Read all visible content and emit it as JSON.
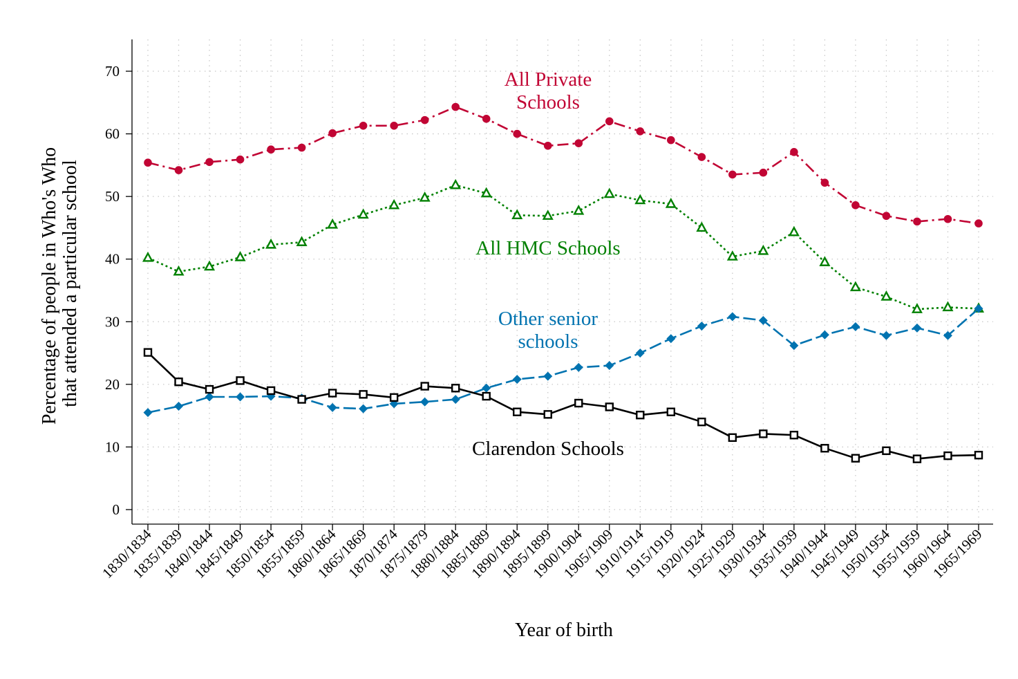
{
  "chart_data": {
    "type": "line",
    "title": "",
    "xlabel": "Year of birth",
    "ylabel_lines": [
      "Percentage of people in Who's Who",
      "that attended a particular school"
    ],
    "ylim": [
      0,
      75
    ],
    "yticks": [
      0,
      10,
      20,
      30,
      40,
      50,
      60,
      70
    ],
    "grid": true,
    "legend": "inline labels",
    "categories": [
      "1830/1834",
      "1835/1839",
      "1840/1844",
      "1845/1849",
      "1850/1854",
      "1855/1859",
      "1860/1864",
      "1865/1869",
      "1870/1874",
      "1875/1879",
      "1880/1884",
      "1885/1889",
      "1890/1894",
      "1895/1899",
      "1900/1904",
      "1905/1909",
      "1910/1914",
      "1915/1919",
      "1920/1924",
      "1925/1929",
      "1930/1934",
      "1935/1939",
      "1940/1944",
      "1945/1949",
      "1950/1954",
      "1955/1959",
      "1960/1964",
      "1965/1969"
    ],
    "series": [
      {
        "key": "private",
        "label_lines": [
          "All Private",
          "Schools"
        ],
        "color": "#c10534",
        "marker": "circle",
        "dash": "16,6,3,6",
        "values": [
          55.4,
          54.2,
          55.5,
          55.9,
          57.5,
          57.8,
          60.1,
          61.3,
          61.3,
          62.2,
          64.3,
          62.4,
          60.0,
          58.1,
          58.5,
          62.0,
          60.4,
          59.0,
          56.3,
          53.5,
          53.8,
          57.1,
          52.2,
          48.6,
          46.9,
          46.0,
          46.4,
          45.7
        ]
      },
      {
        "key": "hmc",
        "label_lines": [
          "All HMC Schools"
        ],
        "color": "#008000",
        "marker": "triangle",
        "dash": "3,4",
        "values": [
          40.2,
          38.0,
          38.8,
          40.3,
          42.3,
          42.7,
          45.5,
          47.1,
          48.6,
          49.8,
          51.8,
          50.5,
          47.0,
          46.9,
          47.7,
          50.4,
          49.4,
          48.8,
          45.0,
          40.4,
          41.3,
          44.3,
          39.5,
          35.5,
          34.0,
          32.0,
          32.3,
          32.1
        ]
      },
      {
        "key": "other",
        "label_lines": [
          "Other senior",
          "schools"
        ],
        "color": "#0073b0",
        "marker": "diamond",
        "dash": "18,6",
        "values": [
          15.5,
          16.5,
          18.0,
          18.0,
          18.1,
          17.8,
          16.3,
          16.1,
          16.9,
          17.2,
          17.6,
          19.4,
          20.8,
          21.3,
          22.7,
          23.0,
          25.0,
          27.3,
          29.3,
          30.8,
          30.2,
          26.2,
          27.9,
          29.2,
          27.8,
          29.0,
          27.8,
          32.1
        ]
      },
      {
        "key": "clarendon",
        "label_lines": [
          "Clarendon Schools"
        ],
        "color": "#000000",
        "marker": "square",
        "dash": "",
        "values": [
          25.1,
          20.4,
          19.2,
          20.6,
          19.0,
          17.6,
          18.6,
          18.4,
          17.9,
          19.7,
          19.4,
          18.1,
          15.6,
          15.2,
          17.0,
          16.4,
          15.1,
          15.6,
          14.0,
          11.5,
          12.1,
          11.9,
          9.8,
          8.2,
          9.4,
          8.1,
          8.6,
          8.7
        ]
      }
    ]
  }
}
